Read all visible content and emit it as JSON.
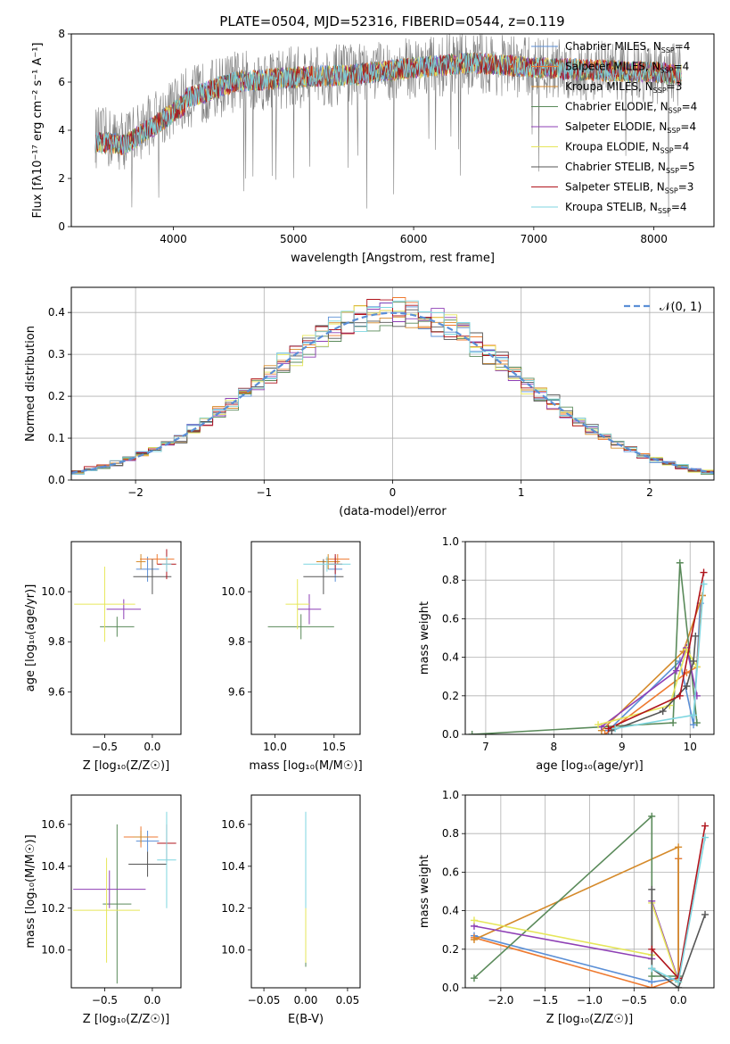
{
  "figure": {
    "title": "PLATE=0504, MJD=52316, FIBERID=0544, z=0.119"
  },
  "models": [
    {
      "label": "Chabrier MILES, N",
      "sub": "SSP",
      "tail": "=4",
      "color": "#5b8fd6"
    },
    {
      "label": "Salpeter MILES, N",
      "sub": "SSP",
      "tail": "=4",
      "color": "#ee7a30"
    },
    {
      "label": "Kroupa MILES, N",
      "sub": "SSP",
      "tail": "=3",
      "color": "#d58a2a"
    },
    {
      "label": "Chabrier ELODIE, N",
      "sub": "SSP",
      "tail": "=4",
      "color": "#5a8a5a"
    },
    {
      "label": "Salpeter ELODIE, N",
      "sub": "SSP",
      "tail": "=4",
      "color": "#8e3fb5"
    },
    {
      "label": "Kroupa ELODIE, N",
      "sub": "SSP",
      "tail": "=4",
      "color": "#e6e65a"
    },
    {
      "label": "Chabrier STELIB, N",
      "sub": "SSP",
      "tail": "=5",
      "color": "#555555"
    },
    {
      "label": "Salpeter STELIB, N",
      "sub": "SSP",
      "tail": "=3",
      "color": "#b0141c"
    },
    {
      "label": "Kroupa STELIB, N",
      "sub": "SSP",
      "tail": "=4",
      "color": "#7fd6e0"
    }
  ],
  "chart_data": [
    {
      "id": "spectrum",
      "type": "line",
      "xlabel": "wavelength [Angstrom, rest frame]",
      "ylabel": "Flux [fλ10⁻¹⁷ erg cm⁻² s⁻¹ A⁻¹]",
      "xlim": [
        3150,
        8500
      ],
      "ylim": [
        0,
        8
      ],
      "xticks": [
        4000,
        5000,
        6000,
        7000,
        8000
      ],
      "yticks": [
        0,
        2,
        4,
        6,
        8
      ],
      "data_color": "#808080",
      "x_range": [
        3350,
        8230
      ],
      "continuum": [
        [
          3350,
          3.7
        ],
        [
          3600,
          3.6
        ],
        [
          3900,
          4.6
        ],
        [
          4100,
          5.3
        ],
        [
          4500,
          6.0
        ],
        [
          5000,
          6.2
        ],
        [
          5500,
          6.3
        ],
        [
          6000,
          6.6
        ],
        [
          6500,
          6.8
        ],
        [
          7000,
          6.6
        ],
        [
          7500,
          6.5
        ],
        [
          8000,
          6.4
        ],
        [
          8230,
          6.3
        ]
      ],
      "legend_position": "right"
    },
    {
      "id": "residuals",
      "type": "histogram",
      "xlabel": "(data-model)/error",
      "ylabel": "Normed distribution",
      "xlim": [
        -2.5,
        2.5
      ],
      "ylim": [
        0,
        0.46
      ],
      "xticks": [
        -2,
        -1,
        0,
        1,
        2
      ],
      "yticks": [
        0,
        0.1,
        0.2,
        0.3,
        0.4
      ],
      "bin_width": 0.1,
      "gaussian_label": "𝒩(0, 1)",
      "gaussian_color": "#5b8fd6",
      "grid": true,
      "legend_position": "top-right"
    },
    {
      "id": "z-age",
      "type": "errorbar",
      "xlabel": "Z [log₁₀(Z/Z☉)]",
      "ylabel": "age  [log₁₀(age/yr)]",
      "xlim": [
        -0.85,
        0.3
      ],
      "ylim": [
        9.43,
        10.2
      ],
      "xticks": [
        -0.5,
        0.0
      ],
      "yticks": [
        9.6,
        9.8,
        10.0
      ],
      "points": [
        {
          "x": -0.05,
          "y": 10.09,
          "xerr": 0.12,
          "yerr": 0.05
        },
        {
          "x": 0.05,
          "y": 10.13,
          "xerr": 0.18,
          "yerr": 0.02
        },
        {
          "x": -0.12,
          "y": 10.12,
          "xerr": 0.05,
          "yerr": 0.03
        },
        {
          "x": -0.37,
          "y": 9.86,
          "xerr": 0.18,
          "yerr": 0.04
        },
        {
          "x": -0.3,
          "y": 9.93,
          "xerr": 0.18,
          "yerr": 0.04
        },
        {
          "x": -0.5,
          "y": 9.95,
          "xerr": 0.32,
          "yerr": 0.15
        },
        {
          "x": 0.0,
          "y": 10.06,
          "xerr": 0.2,
          "yerr": 0.07
        },
        {
          "x": 0.15,
          "y": 10.11,
          "xerr": 0.1,
          "yerr": 0.06
        },
        {
          "x": 0.15,
          "y": 10.11,
          "xerr": 0.05,
          "yerr": 0.03
        }
      ]
    },
    {
      "id": "mass-age",
      "type": "errorbar",
      "xlabel": "mass [log₁₀(M/M☉)]",
      "ylabel": "",
      "xlim": [
        9.8,
        10.72
      ],
      "ylim": [
        9.43,
        10.2
      ],
      "xticks": [
        10.0,
        10.5
      ],
      "yticks": [
        9.6,
        9.8,
        10.0
      ],
      "points": [
        {
          "x": 10.51,
          "y": 10.09,
          "xerr": 0.06,
          "yerr": 0.05
        },
        {
          "x": 10.53,
          "y": 10.13,
          "xerr": 0.1,
          "yerr": 0.02
        },
        {
          "x": 10.45,
          "y": 10.12,
          "xerr": 0.1,
          "yerr": 0.03
        },
        {
          "x": 10.22,
          "y": 9.86,
          "xerr": 0.28,
          "yerr": 0.05
        },
        {
          "x": 10.29,
          "y": 9.93,
          "xerr": 0.1,
          "yerr": 0.06
        },
        {
          "x": 10.19,
          "y": 9.95,
          "xerr": 0.1,
          "yerr": 0.1
        },
        {
          "x": 10.41,
          "y": 10.06,
          "xerr": 0.17,
          "yerr": 0.07
        },
        {
          "x": 10.51,
          "y": 10.11,
          "xerr": 0.06,
          "yerr": 0.04
        },
        {
          "x": 10.44,
          "y": 10.11,
          "xerr": 0.2,
          "yerr": 0.03
        }
      ]
    },
    {
      "id": "age-weight",
      "type": "line",
      "xlabel": "age  [log₁₀(age/yr)]",
      "ylabel": "mass weight",
      "xlim": [
        6.7,
        10.35
      ],
      "ylim": [
        0,
        1.0
      ],
      "xticks": [
        7,
        8,
        9,
        10
      ],
      "yticks": [
        0.0,
        0.2,
        0.4,
        0.6,
        0.8,
        1.0
      ],
      "grid": true,
      "series": [
        {
          "points": [
            [
              8.8,
              0.02
            ],
            [
              9.85,
              0.38
            ],
            [
              10.05,
              0.05
            ],
            [
              10.15,
              0.68
            ]
          ]
        },
        {
          "points": [
            [
              8.75,
              0.0
            ],
            [
              9.95,
              0.32
            ],
            [
              10.1,
              0.35
            ],
            [
              10.18,
              0.72
            ]
          ]
        },
        {
          "points": [
            [
              8.7,
              0.02
            ],
            [
              9.9,
              0.43
            ],
            [
              10.18,
              0.72
            ]
          ]
        },
        {
          "points": [
            [
              6.8,
              0.0
            ],
            [
              9.75,
              0.06
            ],
            [
              9.85,
              0.89
            ],
            [
              10.1,
              0.06
            ]
          ]
        },
        {
          "points": [
            [
              8.7,
              0.04
            ],
            [
              9.8,
              0.33
            ],
            [
              9.95,
              0.45
            ],
            [
              10.1,
              0.2
            ]
          ]
        },
        {
          "points": [
            [
              8.65,
              0.05
            ],
            [
              9.7,
              0.15
            ],
            [
              9.95,
              0.44
            ],
            [
              10.1,
              0.35
            ]
          ]
        },
        {
          "points": [
            [
              8.85,
              0.02
            ],
            [
              9.6,
              0.12
            ],
            [
              9.95,
              0.25
            ],
            [
              10.05,
              0.38
            ],
            [
              10.08,
              0.51
            ]
          ]
        },
        {
          "points": [
            [
              8.8,
              0.03
            ],
            [
              9.85,
              0.2
            ],
            [
              10.2,
              0.84
            ]
          ]
        },
        {
          "points": [
            [
              8.9,
              0.03
            ],
            [
              10.05,
              0.1
            ],
            [
              10.2,
              0.78
            ]
          ]
        }
      ]
    },
    {
      "id": "z-mass",
      "type": "errorbar",
      "xlabel": "Z [log₁₀(Z/Z☉)]",
      "ylabel": "mass [log₁₀(M/M☉)]",
      "xlim": [
        -0.85,
        0.3
      ],
      "ylim": [
        9.82,
        10.74
      ],
      "xticks": [
        -0.5,
        0.0
      ],
      "yticks": [
        10.0,
        10.2,
        10.4,
        10.6
      ],
      "points": [
        {
          "x": -0.05,
          "y": 10.52,
          "xerr": 0.12,
          "yerr": 0.05
        },
        {
          "x": -0.12,
          "y": 10.54,
          "xerr": 0.18,
          "yerr": 0.05
        },
        {
          "x": -0.12,
          "y": 10.54,
          "xerr": 0.08,
          "yerr": 0.03
        },
        {
          "x": -0.37,
          "y": 10.22,
          "xerr": 0.15,
          "yerr": 0.38
        },
        {
          "x": -0.45,
          "y": 10.29,
          "xerr": 0.38,
          "yerr": 0.09
        },
        {
          "x": -0.48,
          "y": 10.19,
          "xerr": 0.35,
          "yerr": 0.25
        },
        {
          "x": -0.05,
          "y": 10.41,
          "xerr": 0.2,
          "yerr": 0.06
        },
        {
          "x": 0.15,
          "y": 10.51,
          "xerr": 0.1,
          "yerr": 0.09
        },
        {
          "x": 0.15,
          "y": 10.43,
          "xerr": 0.1,
          "yerr": 0.23
        }
      ]
    },
    {
      "id": "ebv-mass",
      "type": "errorbar",
      "xlabel": "E(B-V)",
      "ylabel": "",
      "xlim": [
        -0.065,
        0.065
      ],
      "ylim": [
        9.82,
        10.74
      ],
      "xticks": [
        -0.05,
        0.0,
        0.05
      ],
      "yticks": [
        10.0,
        10.2,
        10.4,
        10.6
      ],
      "points": [
        {
          "x": 0.0,
          "y": 10.52,
          "xerr": 0.0,
          "yerr": 0.1
        },
        {
          "x": 0.0,
          "y": 10.54,
          "xerr": 0.0,
          "yerr": 0.08
        },
        {
          "x": 0.0,
          "y": 10.54,
          "xerr": 0.0,
          "yerr": 0.06
        },
        {
          "x": 0.0,
          "y": 10.22,
          "xerr": 0.0,
          "yerr": 0.3
        },
        {
          "x": 0.0,
          "y": 10.29,
          "xerr": 0.0,
          "yerr": 0.15
        },
        {
          "x": 0.0,
          "y": 10.19,
          "xerr": 0.0,
          "yerr": 0.25
        },
        {
          "x": 0.0,
          "y": 10.41,
          "xerr": 0.0,
          "yerr": 0.2
        },
        {
          "x": 0.0,
          "y": 10.51,
          "xerr": 0.0,
          "yerr": 0.09
        },
        {
          "x": 0.0,
          "y": 10.43,
          "xerr": 0.0,
          "yerr": 0.23
        }
      ]
    },
    {
      "id": "z-weight",
      "type": "line",
      "xlabel": "Z [log₁₀(Z/Z☉)]",
      "ylabel": "mass weight",
      "xlim": [
        -2.4,
        0.4
      ],
      "ylim": [
        0,
        1.0
      ],
      "xticks": [
        -2.0,
        -1.5,
        -1.0,
        -0.5,
        0.0
      ],
      "yticks": [
        0.0,
        0.2,
        0.4,
        0.6,
        0.8,
        1.0
      ],
      "grid": true,
      "series": [
        {
          "points": [
            [
              -2.3,
              0.27
            ],
            [
              -0.3,
              0.03
            ],
            [
              0.0,
              0.05
            ],
            [
              0.0,
              0.67
            ]
          ]
        },
        {
          "points": [
            [
              -2.3,
              0.26
            ],
            [
              -0.3,
              0.0
            ],
            [
              0.0,
              0.05
            ],
            [
              0.0,
              0.67
            ]
          ]
        },
        {
          "points": [
            [
              -2.3,
              0.25
            ],
            [
              0.0,
              0.73
            ],
            [
              0.0,
              0.03
            ]
          ]
        },
        {
          "points": [
            [
              -2.3,
              0.05
            ],
            [
              -0.3,
              0.89
            ],
            [
              -0.3,
              0.06
            ],
            [
              0.0,
              0.06
            ]
          ]
        },
        {
          "points": [
            [
              -2.3,
              0.32
            ],
            [
              -0.3,
              0.15
            ],
            [
              -0.3,
              0.45
            ],
            [
              0.0,
              0.04
            ]
          ]
        },
        {
          "points": [
            [
              -2.3,
              0.35
            ],
            [
              -0.3,
              0.17
            ],
            [
              -0.3,
              0.44
            ],
            [
              0.0,
              0.03
            ]
          ]
        },
        {
          "points": [
            [
              -0.3,
              0.51
            ],
            [
              -0.3,
              0.1
            ],
            [
              0.0,
              0.0
            ],
            [
              0.3,
              0.38
            ]
          ]
        },
        {
          "points": [
            [
              -0.3,
              0.2
            ],
            [
              0.0,
              0.05
            ],
            [
              0.3,
              0.84
            ]
          ]
        },
        {
          "points": [
            [
              -0.3,
              0.1
            ],
            [
              0.0,
              0.03
            ],
            [
              0.3,
              0.78
            ]
          ]
        }
      ]
    }
  ]
}
